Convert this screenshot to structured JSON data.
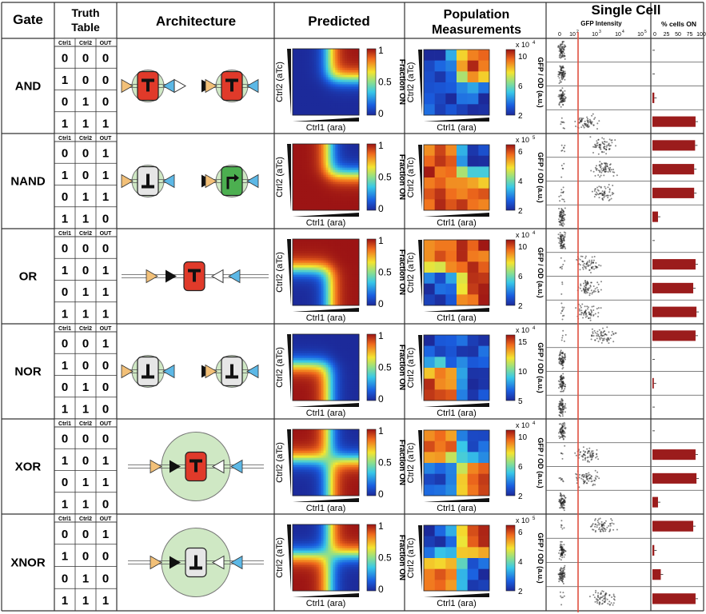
{
  "headers": {
    "gate": "Gate",
    "truth_table": [
      "Truth",
      "Table"
    ],
    "architecture": "Architecture",
    "predicted": "Predicted",
    "population": [
      "Population",
      "Measurements"
    ],
    "single_cell": "Single Cell"
  },
  "truth_table_cols": [
    "Ctrl1",
    "Ctrl2",
    "OUT"
  ],
  "inputs": [
    [
      0,
      0
    ],
    [
      1,
      0
    ],
    [
      0,
      1
    ],
    [
      1,
      1
    ]
  ],
  "gates": [
    {
      "name": "AND",
      "out": [
        0,
        0,
        0,
        1
      ],
      "pop_exp": "x 10",
      "pop_pow": "4",
      "pop_ticks": [
        "10",
        "6",
        "2"
      ],
      "pct_on": [
        0,
        0,
        4,
        93
      ]
    },
    {
      "name": "NAND",
      "out": [
        1,
        1,
        1,
        0
      ],
      "pop_exp": "x 10",
      "pop_pow": "5",
      "pop_ticks": [
        "6",
        "4",
        "2"
      ],
      "pct_on": [
        92,
        90,
        90,
        12
      ]
    },
    {
      "name": "OR",
      "out": [
        0,
        1,
        1,
        1
      ],
      "pop_exp": "x 10",
      "pop_pow": "4",
      "pop_ticks": [
        "10",
        "6",
        "2"
      ],
      "pct_on": [
        0,
        93,
        88,
        95
      ]
    },
    {
      "name": "NOR",
      "out": [
        1,
        0,
        0,
        0
      ],
      "pop_exp": "x 10",
      "pop_pow": "4",
      "pop_ticks": [
        "15",
        "10",
        "5"
      ],
      "pct_on": [
        93,
        0,
        3,
        0
      ]
    },
    {
      "name": "XOR",
      "out": [
        0,
        1,
        1,
        0
      ],
      "pop_exp": "x 10",
      "pop_pow": "4",
      "pop_ticks": [
        "10",
        "6",
        "2"
      ],
      "pct_on": [
        0,
        93,
        95,
        12
      ]
    },
    {
      "name": "XNOR",
      "out": [
        1,
        0,
        0,
        1
      ],
      "pop_exp": "x 10",
      "pop_pow": "5",
      "pop_ticks": [
        "6",
        "4",
        "2"
      ],
      "pct_on": [
        88,
        4,
        18,
        93
      ]
    }
  ],
  "axis_labels": {
    "ctrl1": "Ctrl1 (ara)",
    "ctrl2": "Ctrl2 (aTc)",
    "fraction_on": "Fraction ON",
    "gfp_od": "GFP / OD (a.u.)",
    "gfp_intensity": "GFP Intensity",
    "pct_cells_on": "% cells ON"
  },
  "predicted_ticks": [
    "1",
    "0.5",
    "0"
  ],
  "gfp_ticks": [
    "0",
    "10",
    "2",
    "10",
    "3",
    "10",
    "4",
    "10",
    "5"
  ],
  "pct_ticks": [
    "0",
    "25",
    "50",
    "75",
    "100"
  ],
  "chart_data": [
    {
      "type": "bar",
      "title": "AND % cells ON",
      "categories": [
        "Ctrl1=0,Ctrl2=0",
        "Ctrl1=1,Ctrl2=0",
        "Ctrl1=0,Ctrl2=1",
        "Ctrl1=1,Ctrl2=1"
      ],
      "values": [
        0,
        0,
        4,
        93
      ],
      "xlabel": "% cells ON",
      "ylim": [
        0,
        100
      ]
    },
    {
      "type": "bar",
      "title": "NAND % cells ON",
      "categories": [
        "Ctrl1=0,Ctrl2=0",
        "Ctrl1=1,Ctrl2=0",
        "Ctrl1=0,Ctrl2=1",
        "Ctrl1=1,Ctrl2=1"
      ],
      "values": [
        92,
        90,
        90,
        12
      ],
      "xlabel": "% cells ON",
      "ylim": [
        0,
        100
      ]
    },
    {
      "type": "bar",
      "title": "OR % cells ON",
      "categories": [
        "Ctrl1=0,Ctrl2=0",
        "Ctrl1=1,Ctrl2=0",
        "Ctrl1=0,Ctrl2=1",
        "Ctrl1=1,Ctrl2=1"
      ],
      "values": [
        0,
        93,
        88,
        95
      ],
      "xlabel": "% cells ON",
      "ylim": [
        0,
        100
      ]
    },
    {
      "type": "bar",
      "title": "NOR % cells ON",
      "categories": [
        "Ctrl1=0,Ctrl2=0",
        "Ctrl1=1,Ctrl2=0",
        "Ctrl1=0,Ctrl2=1",
        "Ctrl1=1,Ctrl2=1"
      ],
      "values": [
        93,
        0,
        3,
        0
      ],
      "xlabel": "% cells ON",
      "ylim": [
        0,
        100
      ]
    },
    {
      "type": "bar",
      "title": "XOR % cells ON",
      "categories": [
        "Ctrl1=0,Ctrl2=0",
        "Ctrl1=1,Ctrl2=0",
        "Ctrl1=0,Ctrl2=1",
        "Ctrl1=1,Ctrl2=1"
      ],
      "values": [
        0,
        93,
        95,
        12
      ],
      "xlabel": "% cells ON",
      "ylim": [
        0,
        100
      ]
    },
    {
      "type": "bar",
      "title": "XNOR % cells ON",
      "categories": [
        "Ctrl1=0,Ctrl2=0",
        "Ctrl1=1,Ctrl2=0",
        "Ctrl1=0,Ctrl2=1",
        "Ctrl1=1,Ctrl2=1"
      ],
      "values": [
        88,
        4,
        18,
        93
      ],
      "xlabel": "% cells ON",
      "ylim": [
        0,
        100
      ]
    }
  ],
  "colors": {
    "bar": "#9b1c1c",
    "cutoff_line": "#e05040",
    "repressor": "#e03a2a",
    "grey_box": "#e6e6e6",
    "green_box": "#4caf50",
    "promoter_orange": "#f2c078",
    "promoter_blue": "#5cb8e6"
  }
}
